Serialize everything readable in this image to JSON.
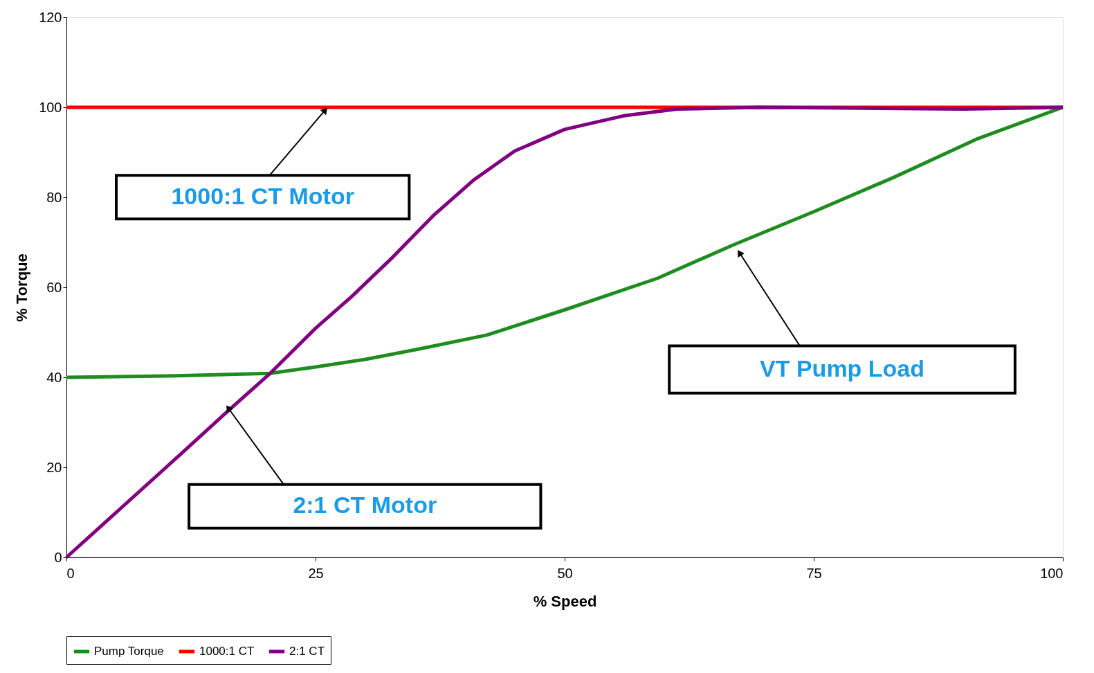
{
  "chart_data": {
    "type": "line",
    "xlabel": "% Speed",
    "ylabel": "% Torque",
    "xlim": [
      0,
      100
    ],
    "xticks": [
      0,
      25,
      50,
      75,
      100
    ],
    "ylim": [
      0,
      120
    ],
    "yticks": [
      0,
      20,
      40,
      60,
      80,
      100,
      120
    ],
    "grid": false,
    "legend": "bottom",
    "marker": "none",
    "line_style": "solid",
    "series": [
      {
        "name": "Pump Torque",
        "color": "#1e8c1e",
        "x": [
          0,
          10,
          20.4,
          25,
          30,
          35.4,
          42.2,
          50,
          59.3,
          66.8,
          75,
          83.2,
          91.3,
          100
        ],
        "values": [
          40,
          40.3,
          40.9,
          42.3,
          44,
          46.3,
          49.4,
          55,
          62,
          69.3,
          76.8,
          84.6,
          92.9,
          100
        ]
      },
      {
        "name": "1000:1 CT",
        "color": "#ff0000",
        "x": [
          0,
          100
        ],
        "values": [
          100,
          100
        ]
      },
      {
        "name": "2:1 CT",
        "color": "#800080",
        "x": [
          0,
          10,
          16.3,
          20.4,
          25,
          28.6,
          32.7,
          36.8,
          40.9,
          45,
          50,
          55.9,
          61.3,
          69.5,
          76.3,
          90,
          100
        ],
        "values": [
          0,
          20,
          32.7,
          40.8,
          50.9,
          57.9,
          66.6,
          75.9,
          83.9,
          90.3,
          95.1,
          98.1,
          99.6,
          100,
          99.9,
          99.6,
          100
        ]
      }
    ],
    "annotations": [
      {
        "text": "1000:1 CT Motor",
        "x": 25.9,
        "y": 99.2
      },
      {
        "text": "VT Pump Load",
        "x": 67.6,
        "y": 67.5
      },
      {
        "text": "2:1 CT Motor",
        "x": 16.3,
        "y": 33
      }
    ]
  }
}
